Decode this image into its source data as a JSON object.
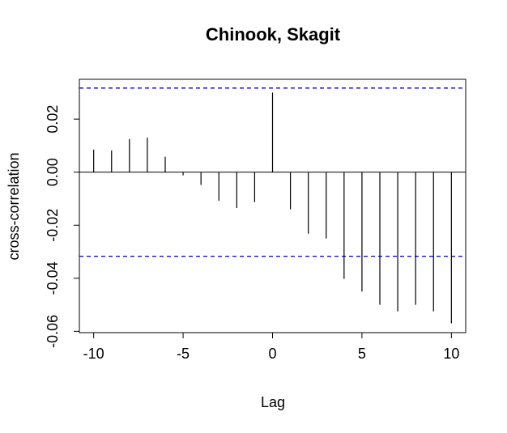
{
  "chart_data": {
    "type": "bar",
    "title": "Chinook, Skagit",
    "xlabel": "Lag",
    "ylabel": "cross-correlation",
    "x": [
      -10,
      -9,
      -8,
      -7,
      -6,
      -5,
      -4,
      -3,
      -2,
      -1,
      0,
      1,
      2,
      3,
      4,
      5,
      6,
      7,
      8,
      9,
      10
    ],
    "values": [
      0.0085,
      0.0082,
      0.0125,
      0.013,
      0.0058,
      -0.0012,
      -0.0048,
      -0.0108,
      -0.0135,
      -0.0113,
      0.03,
      -0.014,
      -0.0232,
      -0.025,
      -0.0402,
      -0.045,
      -0.05,
      -0.0525,
      -0.05,
      -0.0525,
      -0.057
    ],
    "xlim": [
      -10.8,
      10.8
    ],
    "ylim": [
      -0.0605,
      0.035
    ],
    "x_ticks": [
      -10,
      -5,
      0,
      5,
      10
    ],
    "x_tick_labels": [
      "-10",
      "-5",
      "0",
      "5",
      "10"
    ],
    "y_ticks": [
      -0.06,
      -0.04,
      -0.02,
      0.0,
      0.02
    ],
    "y_tick_labels": [
      "-0.06",
      "-0.04",
      "-0.02",
      "0.00",
      "0.02"
    ],
    "confidence_bounds": [
      0.0317,
      -0.0317
    ],
    "bound_color": "#0000cc",
    "bar_color": "#000000",
    "grid": false
  }
}
